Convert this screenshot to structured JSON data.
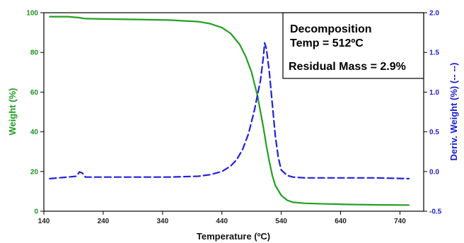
{
  "chart_data": {
    "type": "line",
    "xlabel": "Temperature (ºC)",
    "ylabel_left": "Weight (%)",
    "ylabel_right": "Deriv. Weight (%) (-- --)",
    "xlim": [
      140,
      780
    ],
    "ylim_left": [
      0,
      100
    ],
    "ylim_right": [
      -0.5,
      2.0
    ],
    "x_ticks": [
      "140",
      "240",
      "340",
      "440",
      "540",
      "640",
      "740"
    ],
    "y_left_ticks": [
      "0",
      "20",
      "40",
      "60",
      "80",
      "100"
    ],
    "y_right_ticks": [
      "-0.5",
      "0.0",
      "0.5",
      "1.0",
      "1.5",
      "2.0"
    ],
    "grid": false,
    "series": [
      {
        "axis": "left",
        "style": "solid",
        "color": "#22a022",
        "x": [
          150,
          180,
          200,
          210,
          250,
          300,
          350,
          400,
          420,
          440,
          455,
          470,
          480,
          490,
          500,
          505,
          510,
          515,
          520,
          525,
          530,
          540,
          550,
          560,
          580,
          600,
          650,
          700,
          755
        ],
        "y": [
          98,
          98,
          97.5,
          97,
          96.8,
          96.6,
          96.3,
          95.5,
          94.5,
          92.5,
          89.5,
          84,
          78,
          70,
          58,
          50,
          42,
          33,
          25,
          18,
          13,
          8,
          5.5,
          4.5,
          4,
          3.8,
          3.4,
          3.2,
          3.1
        ]
      },
      {
        "axis": "right",
        "style": "dashed",
        "color": "#2020e0",
        "x": [
          150,
          180,
          195,
          200,
          205,
          210,
          250,
          300,
          350,
          400,
          420,
          440,
          455,
          465,
          475,
          485,
          495,
          505,
          510,
          512,
          515,
          520,
          525,
          530,
          535,
          540,
          550,
          560,
          580,
          650,
          700,
          755
        ],
        "y": [
          -0.09,
          -0.07,
          -0.06,
          -0.005,
          -0.02,
          -0.07,
          -0.07,
          -0.07,
          -0.07,
          -0.06,
          -0.04,
          0.0,
          0.07,
          0.15,
          0.28,
          0.48,
          0.78,
          1.15,
          1.45,
          1.62,
          1.55,
          1.25,
          0.85,
          0.45,
          0.18,
          0.02,
          -0.05,
          -0.07,
          -0.08,
          -0.08,
          -0.08,
          -0.09
        ]
      }
    ],
    "annotation": {
      "line1": "Decomposition",
      "line2": "Temp = 512ºC",
      "line3": "Residual Mass = 2.9%"
    }
  }
}
